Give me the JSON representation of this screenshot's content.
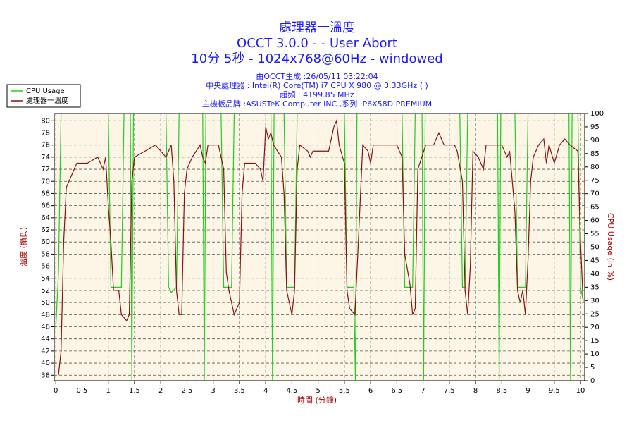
{
  "chart_data": {
    "type": "line",
    "title": "處理器一溫度",
    "subtitle": "OCCT 3.0.0 -  - User Abort",
    "subtitle2": "10分 5秒 - 1024x768@60Hz - windowed",
    "info": [
      "由OCCT生成 :26/05/11 03:22:04",
      "中央處理器 : Intel(R) Core(TM) i7 CPU X 980 @ 3.33GHz (  )",
      "超頻 : 4199.85 MHz",
      "主機板品牌 :ASUSTeK Computer INC.,系列 :P6X58D PREMIUM"
    ],
    "xlabel": "時間 (分鐘)",
    "ylabel": "溫度 (攝氏)",
    "y2label": "CPU Usage (in %)",
    "xlim": [
      -0.03,
      10.08
    ],
    "xticks": [
      0,
      0.5,
      1,
      1.5,
      2,
      2.5,
      3,
      3.5,
      4,
      4.5,
      5,
      5.5,
      6,
      6.5,
      7,
      7.5,
      8,
      8.5,
      9,
      9.5,
      10
    ],
    "ylim": [
      37.1,
      81.2
    ],
    "yticks": [
      38,
      40,
      42,
      44,
      46,
      48,
      50,
      52,
      54,
      56,
      58,
      60,
      62,
      64,
      66,
      68,
      70,
      72,
      74,
      76,
      78,
      80
    ],
    "y2lim": [
      0,
      100
    ],
    "y2ticks": [
      0,
      5,
      10,
      15,
      20,
      25,
      30,
      35,
      40,
      45,
      50,
      55,
      60,
      65,
      70,
      75,
      80,
      85,
      90,
      95,
      100
    ],
    "grid": true,
    "legend": "top-left",
    "series": [
      {
        "name": "CPU Usage",
        "color": "#22cc22",
        "axis": "y2",
        "x": [
          0,
          0.05,
          0.1,
          0.15,
          1.0,
          1.05,
          1.1,
          1.25,
          1.3,
          1.35,
          1.42,
          1.45,
          1.48,
          2.1,
          2.15,
          2.2,
          2.3,
          2.35,
          2.4,
          2.8,
          2.83,
          2.86,
          3.15,
          3.2,
          3.25,
          3.35,
          3.4,
          3.45,
          4.1,
          4.13,
          4.16,
          4.35,
          4.4,
          4.45,
          4.55,
          4.6,
          5.5,
          5.55,
          5.6,
          5.68,
          5.71,
          5.74,
          6.6,
          6.65,
          6.7,
          6.8,
          6.85,
          6.98,
          7.01,
          7.04,
          7.7,
          7.75,
          7.8,
          7.85,
          8.42,
          8.45,
          8.48,
          8.75,
          8.8,
          8.85,
          8.95,
          9.0,
          9.78,
          9.81,
          9.84,
          9.95,
          10.0,
          10.05
        ],
        "values": [
          20,
          40,
          100,
          100,
          100,
          35,
          35,
          35,
          100,
          100,
          100,
          0,
          100,
          100,
          35,
          33,
          35,
          100,
          100,
          100,
          0,
          100,
          100,
          35,
          35,
          35,
          100,
          100,
          100,
          0,
          100,
          100,
          35,
          35,
          35,
          100,
          100,
          35,
          35,
          35,
          0,
          100,
          100,
          35,
          35,
          35,
          100,
          100,
          0,
          100,
          100,
          35,
          35,
          100,
          100,
          0,
          100,
          100,
          35,
          35,
          35,
          100,
          100,
          0,
          100,
          100,
          35,
          30
        ]
      },
      {
        "name": "處理器一溫度",
        "color": "#8b1010",
        "x": [
          0.05,
          0.1,
          0.15,
          0.2,
          0.3,
          0.4,
          0.6,
          0.8,
          0.9,
          0.95,
          1.0,
          1.05,
          1.1,
          1.2,
          1.25,
          1.35,
          1.4,
          1.45,
          1.5,
          1.7,
          1.9,
          2.0,
          2.1,
          2.2,
          2.25,
          2.3,
          2.35,
          2.4,
          2.45,
          2.5,
          2.6,
          2.75,
          2.8,
          2.85,
          2.9,
          3.1,
          3.2,
          3.25,
          3.3,
          3.4,
          3.5,
          3.55,
          3.6,
          3.8,
          3.9,
          3.95,
          4.0,
          4.05,
          4.1,
          4.15,
          4.3,
          4.35,
          4.4,
          4.5,
          4.55,
          4.6,
          4.65,
          4.8,
          4.85,
          4.9,
          5.0,
          5.2,
          5.3,
          5.35,
          5.4,
          5.5,
          5.55,
          5.6,
          5.7,
          5.75,
          5.85,
          5.95,
          6.0,
          6.05,
          6.3,
          6.5,
          6.6,
          6.65,
          6.75,
          6.8,
          6.85,
          6.9,
          7.05,
          7.2,
          7.3,
          7.4,
          7.5,
          7.6,
          7.65,
          7.75,
          7.8,
          7.85,
          7.9,
          7.95,
          8.05,
          8.15,
          8.2,
          8.3,
          8.5,
          8.6,
          8.65,
          8.75,
          8.8,
          8.85,
          8.9,
          8.95,
          9.0,
          9.05,
          9.1,
          9.2,
          9.3,
          9.35,
          9.4,
          9.5,
          9.6,
          9.7,
          9.8,
          9.95,
          10.0,
          10.05
        ],
        "values": [
          38,
          42,
          60,
          69,
          71,
          73,
          73,
          74,
          72,
          74,
          66,
          60,
          52,
          52,
          48,
          47,
          48,
          70,
          74,
          75,
          76,
          75,
          74,
          76,
          70,
          52,
          48,
          48,
          68,
          72,
          74,
          76,
          74,
          73,
          76,
          76,
          72,
          55,
          52,
          48,
          50,
          68,
          73,
          73,
          72,
          70,
          79,
          77,
          78,
          76,
          74,
          68,
          52,
          48,
          52,
          72,
          76,
          75,
          74,
          75,
          75,
          75,
          79,
          80,
          76,
          73,
          52,
          49,
          48,
          57,
          76,
          75,
          73,
          76,
          76,
          76,
          74,
          58,
          53,
          48,
          49,
          72,
          76,
          76,
          78,
          76,
          76,
          76,
          75,
          70,
          52,
          48,
          56,
          75,
          74,
          72,
          76,
          76,
          76,
          74,
          75,
          65,
          52,
          50,
          52,
          48,
          57,
          70,
          74,
          76,
          77,
          73,
          76,
          73,
          76,
          77,
          76,
          75,
          60,
          50
        ]
      }
    ]
  }
}
